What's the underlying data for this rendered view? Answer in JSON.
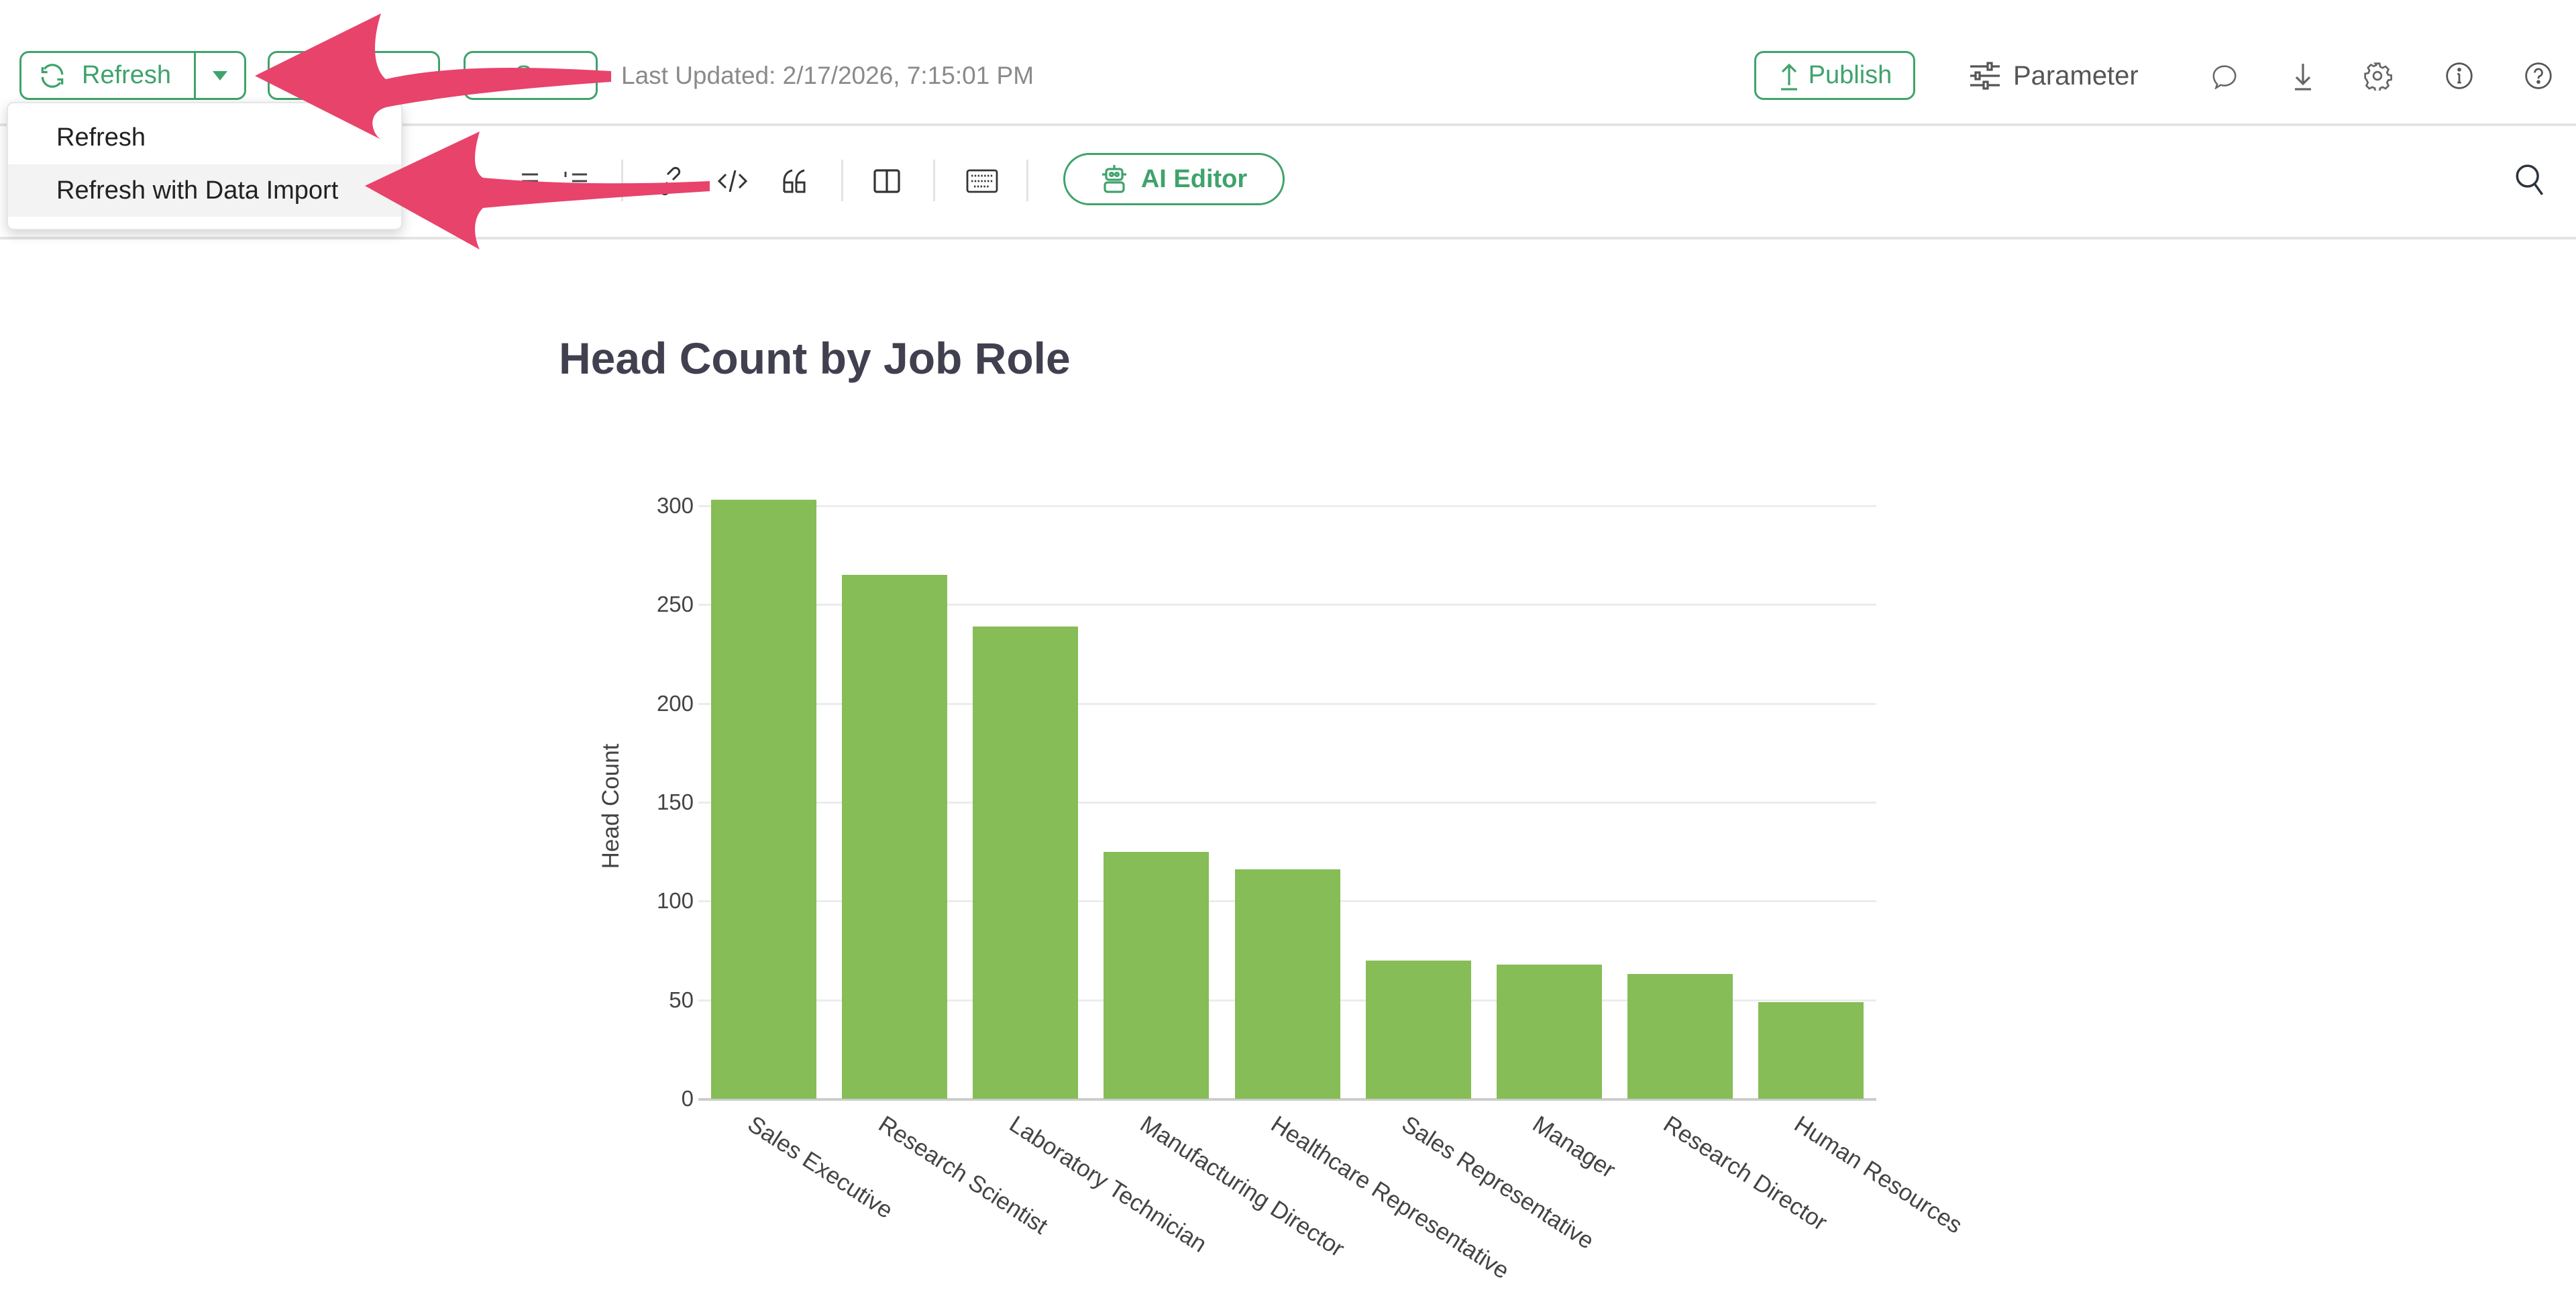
{
  "toolbar": {
    "refresh_label": "Refresh",
    "save_label": "Save",
    "last_updated": "Last Updated: 2/17/2026, 7:15:01 PM",
    "publish_label": "Publish",
    "parameter_label": "Parameter"
  },
  "refresh_menu": {
    "items": [
      {
        "label": "Refresh"
      },
      {
        "label": "Refresh with Data Import",
        "highlighted": true
      }
    ]
  },
  "editor_toolbar": {
    "ai_editor_label": "AI Editor"
  },
  "document": {
    "title": "Head Count by Job Role"
  },
  "colors": {
    "accent": "#3fa36b",
    "bar": "#86bd56",
    "arrow": "#e8436b"
  },
  "chart_data": {
    "type": "bar",
    "title": "",
    "xlabel": "",
    "ylabel": "Head Count",
    "ylim": [
      0,
      300
    ],
    "yticks": [
      0,
      50,
      100,
      150,
      200,
      250,
      300
    ],
    "grid": true,
    "categories": [
      "Sales Executive",
      "Research Scientist",
      "Laboratory Technician",
      "Manufacturing Director",
      "Healthcare Representative",
      "Sales Representative",
      "Manager",
      "Research Director",
      "Human Resources"
    ],
    "values": [
      303,
      265,
      239,
      125,
      116,
      70,
      68,
      63,
      49
    ]
  }
}
